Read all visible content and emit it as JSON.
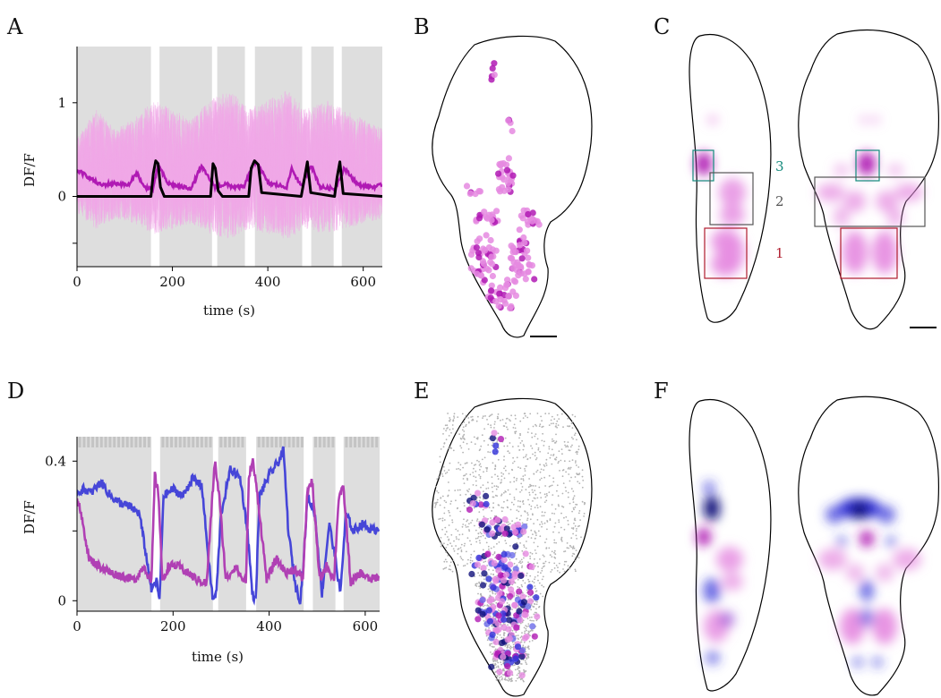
{
  "figure": {
    "panel_labels": [
      "A",
      "B",
      "C",
      "D",
      "E",
      "F"
    ]
  },
  "chart_data": [
    {
      "panel": "A",
      "type": "line",
      "xlabel": "time (s)",
      "ylabel": "DF/F",
      "xlim": [
        0,
        640
      ],
      "ylim": [
        -0.75,
        1.6
      ],
      "xticks": [
        "0",
        "200",
        "400",
        "600"
      ],
      "yticks": [
        "-0",
        "0",
        "1"
      ],
      "ytick_values": [
        -0.5,
        0,
        1
      ],
      "ytick_labels": [
        "",
        "0",
        "1"
      ],
      "shaded_intervals": [
        [
          0,
          155
        ],
        [
          173,
          283
        ],
        [
          294,
          352
        ],
        [
          373,
          472
        ],
        [
          491,
          538
        ],
        [
          555,
          640
        ]
      ],
      "series": [
        {
          "role": "single-cell traces",
          "color": "#f0a8e8",
          "x": [
            0,
            40,
            80,
            120,
            160,
            200,
            240,
            280,
            320,
            360,
            400,
            440,
            480,
            520,
            560,
            600,
            640
          ],
          "y": [
            0.5,
            0.8,
            0.6,
            0.7,
            0.9,
            0.8,
            0.7,
            0.9,
            1.0,
            0.8,
            0.9,
            1.0,
            0.8,
            0.9,
            0.8,
            0.7,
            0.6
          ]
        },
        {
          "role": "mean trace",
          "color": "#b01ab4",
          "x": [
            0,
            20,
            50,
            80,
            110,
            125,
            140,
            160,
            170,
            190,
            220,
            240,
            260,
            290,
            310,
            330,
            350,
            370,
            380,
            400,
            420,
            440,
            450,
            470,
            490,
            510,
            540,
            560,
            590,
            620,
            640
          ],
          "y": [
            0.28,
            0.22,
            0.12,
            0.14,
            0.12,
            0.26,
            0.1,
            0.08,
            0.34,
            0.14,
            0.1,
            0.09,
            0.32,
            0.1,
            0.13,
            0.1,
            0.1,
            0.35,
            0.35,
            0.14,
            0.12,
            0.1,
            0.3,
            0.1,
            0.34,
            0.1,
            0.08,
            0.3,
            0.12,
            0.1,
            0.12
          ]
        },
        {
          "role": "stimulus regressor",
          "color": "#000000",
          "x": [
            0,
            155,
            160,
            165,
            170,
            175,
            183,
            280,
            285,
            290,
            296,
            305,
            360,
            365,
            372,
            380,
            387,
            470,
            477,
            483,
            490,
            540,
            545,
            551,
            558,
            640
          ],
          "y": [
            0,
            0,
            0.25,
            0.38,
            0.35,
            0.1,
            0,
            0,
            0.35,
            0.3,
            0.06,
            0,
            0,
            0.3,
            0.38,
            0.34,
            0.04,
            0,
            0.2,
            0.37,
            0.04,
            0,
            0.2,
            0.37,
            0.03,
            0
          ]
        }
      ]
    },
    {
      "panel": "D",
      "type": "line",
      "xlabel": "time (s)",
      "ylabel": "DF/F",
      "xlim": [
        0,
        630
      ],
      "ylim": [
        -0.03,
        0.47
      ],
      "xticks": [
        "0",
        "200",
        "400",
        "600"
      ],
      "yticks": [
        "0",
        "0.4"
      ],
      "shaded_intervals": [
        [
          0,
          155
        ],
        [
          173,
          283
        ],
        [
          294,
          352
        ],
        [
          373,
          472
        ],
        [
          491,
          538
        ],
        [
          555,
          630
        ]
      ],
      "series": [
        {
          "role": "trace 1",
          "color": "#4646d8",
          "x": [
            0,
            15,
            30,
            50,
            70,
            90,
            110,
            130,
            145,
            155,
            165,
            172,
            180,
            200,
            220,
            240,
            260,
            275,
            283,
            290,
            300,
            320,
            340,
            355,
            365,
            372,
            380,
            400,
            420,
            430,
            440,
            455,
            465,
            472,
            480,
            495,
            510,
            525,
            538,
            548,
            560,
            575,
            595,
            615,
            630
          ],
          "y": [
            0.31,
            0.32,
            0.31,
            0.34,
            0.3,
            0.28,
            0.27,
            0.25,
            0.12,
            0.03,
            0.06,
            0.0,
            0.3,
            0.32,
            0.3,
            0.35,
            0.33,
            0.1,
            0.0,
            0.02,
            0.25,
            0.38,
            0.35,
            0.2,
            0.02,
            0.0,
            0.3,
            0.36,
            0.4,
            0.43,
            0.2,
            0.04,
            0.0,
            0.12,
            0.3,
            0.25,
            0.02,
            0.22,
            0.12,
            0.02,
            0.25,
            0.2,
            0.22,
            0.2,
            0.21
          ]
        },
        {
          "role": "trace 2",
          "color": "#b040b4",
          "x": [
            0,
            15,
            25,
            45,
            70,
            95,
            120,
            140,
            155,
            162,
            170,
            178,
            190,
            210,
            230,
            250,
            270,
            280,
            287,
            296,
            310,
            330,
            345,
            352,
            358,
            366,
            376,
            395,
            415,
            435,
            455,
            470,
            480,
            490,
            505,
            520,
            535,
            545,
            555,
            570,
            590,
            610,
            630
          ],
          "y": [
            0.3,
            0.2,
            0.12,
            0.1,
            0.08,
            0.07,
            0.06,
            0.1,
            0.05,
            0.36,
            0.3,
            0.05,
            0.1,
            0.1,
            0.08,
            0.06,
            0.05,
            0.26,
            0.4,
            0.3,
            0.06,
            0.1,
            0.06,
            0.06,
            0.36,
            0.4,
            0.3,
            0.06,
            0.12,
            0.08,
            0.09,
            0.06,
            0.32,
            0.34,
            0.06,
            0.1,
            0.06,
            0.3,
            0.32,
            0.05,
            0.08,
            0.06,
            0.07
          ]
        }
      ]
    }
  ],
  "panelC": {
    "boxes": [
      {
        "label": "3",
        "color": "#138a7c"
      },
      {
        "label": "2",
        "color": "#555555"
      },
      {
        "label": "1",
        "color": "#b01c2e"
      }
    ]
  },
  "colors": {
    "magenta_light": "#e58ae0",
    "magenta_dark": "#b01ab4",
    "blue": "#3030d8",
    "navy": "#10107a",
    "grey_points": "#b3b3b3",
    "shade": "#dedede"
  }
}
